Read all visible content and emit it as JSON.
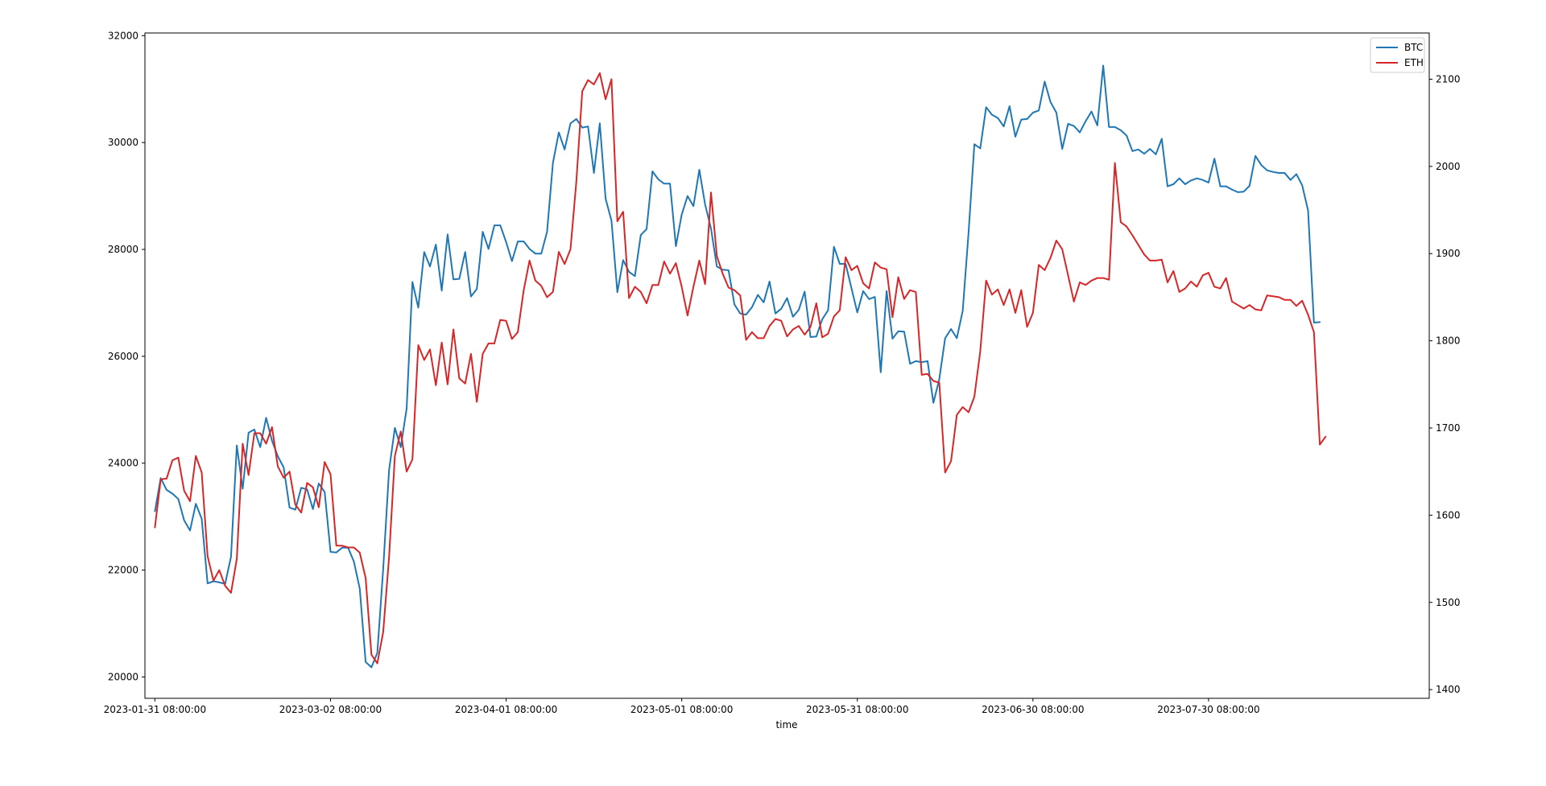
{
  "chart_data": {
    "type": "line",
    "title": "",
    "xlabel": "time",
    "ylabel": "",
    "y2label": "",
    "legend_position": "top-right",
    "grid": false,
    "x_tick_labels": [
      "2023-01-31 08:00:00",
      "2023-03-02 08:00:00",
      "2023-04-01 08:00:00",
      "2023-05-01 08:00:00",
      "2023-05-31 08:00:00",
      "2023-06-30 08:00:00",
      "2023-07-30 08:00:00"
    ],
    "x_range_days": [
      -1.7,
      217.7
    ],
    "x_start_date": "2023-01-31",
    "left_axis": {
      "series": "BTC",
      "ylim": [
        19600,
        32050
      ],
      "ticks": [
        "20000",
        "22000",
        "24000",
        "26000",
        "28000",
        "30000",
        "32000"
      ]
    },
    "right_axis": {
      "series": "ETH",
      "ylim": [
        1390,
        2153
      ],
      "ticks": [
        "1400",
        "1500",
        "1600",
        "1700",
        "1800",
        "1900",
        "2000",
        "2100"
      ]
    },
    "series": [
      {
        "name": "BTC",
        "color": "#1f77b4",
        "axis": "left",
        "values": [
          23100,
          23720,
          23500,
          23430,
          23330,
          22930,
          22740,
          23240,
          22960,
          21750,
          21790,
          21770,
          21740,
          22250,
          24330,
          23520,
          24570,
          24630,
          24300,
          24850,
          24420,
          24130,
          23920,
          23170,
          23130,
          23540,
          23510,
          23140,
          23620,
          23460,
          22340,
          22330,
          22420,
          22420,
          22160,
          21650,
          20280,
          20180,
          20450,
          22020,
          23870,
          24660,
          24300,
          25020,
          27390,
          26910,
          27950,
          27680,
          28090,
          27230,
          28280,
          27440,
          27450,
          27950,
          27120,
          27260,
          28330,
          28010,
          28450,
          28450,
          28140,
          27780,
          28150,
          28150,
          28010,
          27920,
          27920,
          28330,
          29620,
          30190,
          29870,
          30360,
          30440,
          30280,
          30300,
          29430,
          30360,
          28950,
          28540,
          27200,
          27800,
          27580,
          27500,
          28270,
          28380,
          29460,
          29310,
          29230,
          29230,
          28060,
          28650,
          29000,
          28810,
          29490,
          28840,
          28390,
          27680,
          27620,
          27610,
          26970,
          26800,
          26780,
          26920,
          27150,
          27010,
          27400,
          26800,
          26890,
          27090,
          26740,
          26870,
          27210,
          26360,
          26370,
          26690,
          26860,
          28050,
          27730,
          27730,
          27270,
          26820,
          27220,
          27070,
          27110,
          25700,
          27220,
          26330,
          26470,
          26460,
          25860,
          25910,
          25890,
          25910,
          25130,
          25570,
          26340,
          26510,
          26340,
          26850,
          28320,
          29970,
          29890,
          30660,
          30520,
          30460,
          30300,
          30680,
          30110,
          30430,
          30440,
          30560,
          30600,
          31140,
          30760,
          30560,
          29880,
          30350,
          30310,
          30190,
          30400,
          30580,
          30320,
          31440,
          30290,
          30290,
          30230,
          30130,
          29840,
          29870,
          29790,
          29880,
          29780,
          30070,
          29180,
          29220,
          29330,
          29220,
          29290,
          29330,
          29300,
          29250,
          29700,
          29180,
          29180,
          29120,
          29070,
          29080,
          29190,
          29750,
          29580,
          29480,
          29450,
          29430,
          29430,
          29300,
          29410,
          29200,
          28730,
          26630,
          26640
        ]
      },
      {
        "name": "ETH",
        "color": "#d62728",
        "axis": "right",
        "values": [
          1586,
          1641,
          1642,
          1663,
          1666,
          1628,
          1616,
          1668,
          1649,
          1553,
          1525,
          1537,
          1519,
          1511,
          1550,
          1682,
          1646,
          1694,
          1694,
          1682,
          1701,
          1656,
          1643,
          1650,
          1612,
          1603,
          1637,
          1632,
          1609,
          1661,
          1647,
          1565,
          1565,
          1563,
          1563,
          1557,
          1528,
          1440,
          1430,
          1466,
          1552,
          1668,
          1696,
          1650,
          1664,
          1795,
          1778,
          1790,
          1749,
          1798,
          1750,
          1813,
          1757,
          1751,
          1785,
          1730,
          1785,
          1797,
          1797,
          1824,
          1823,
          1802,
          1810,
          1858,
          1892,
          1869,
          1863,
          1850,
          1856,
          1902,
          1888,
          1905,
          1983,
          2086,
          2099,
          2094,
          2107,
          2077,
          2100,
          1937,
          1948,
          1849,
          1862,
          1856,
          1843,
          1864,
          1864,
          1891,
          1877,
          1889,
          1862,
          1829,
          1862,
          1892,
          1865,
          1970,
          1897,
          1877,
          1861,
          1858,
          1852,
          1801,
          1810,
          1803,
          1803,
          1817,
          1825,
          1823,
          1805,
          1813,
          1817,
          1807,
          1816,
          1843,
          1804,
          1808,
          1828,
          1835,
          1896,
          1881,
          1886,
          1866,
          1860,
          1890,
          1884,
          1882,
          1827,
          1873,
          1848,
          1858,
          1856,
          1761,
          1762,
          1754,
          1752,
          1649,
          1662,
          1715,
          1724,
          1718,
          1736,
          1788,
          1869,
          1853,
          1859,
          1841,
          1859,
          1832,
          1858,
          1816,
          1832,
          1887,
          1881,
          1895,
          1915,
          1905,
          1875,
          1845,
          1867,
          1864,
          1869,
          1872,
          1872,
          1870,
          2004,
          1936,
          1931,
          1921,
          1910,
          1899,
          1892,
          1892,
          1893,
          1867,
          1880,
          1856,
          1860,
          1868,
          1862,
          1875,
          1878,
          1862,
          1860,
          1872,
          1845,
          1841,
          1837,
          1841,
          1836,
          1835,
          1852,
          1851,
          1850,
          1847,
          1847,
          1840,
          1846,
          1830,
          1810,
          1681,
          1690
        ]
      }
    ]
  }
}
